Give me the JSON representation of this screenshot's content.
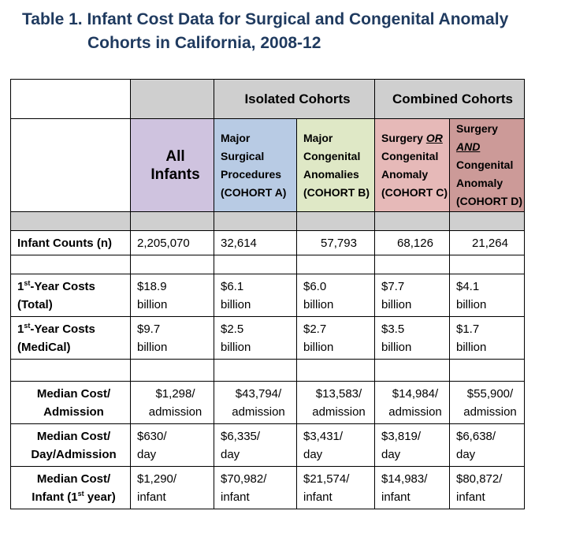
{
  "title": {
    "line1": "Table 1. Infant Cost Data for Surgical and Congenital Anomaly",
    "line2": "Cohorts in California, 2008-12"
  },
  "groups": {
    "isolated": "Isolated Cohorts",
    "combined": "Combined Cohorts"
  },
  "columns": {
    "all": [
      "All",
      "Infants"
    ],
    "a": [
      "Major",
      "Surgical",
      "Procedures",
      "(COHORT A)"
    ],
    "b": [
      "Major",
      "Congenital",
      "Anomalies",
      "(COHORT B)"
    ],
    "c": {
      "pre": "Surgery ",
      "em": "OR",
      "rest": [
        "Congenital",
        "Anomaly",
        "(COHORT C)"
      ]
    },
    "d": {
      "pre": "Surgery",
      "em": "AND",
      "rest": [
        "Congenital",
        "Anomaly",
        "(COHORT D)"
      ]
    }
  },
  "rows": {
    "counts": {
      "label": "Infant Counts (n)",
      "values": [
        "2,205,070",
        "32,614",
        "57,793",
        "68,126",
        "21,264"
      ]
    },
    "total": {
      "label_sup": "st",
      "label1": "-Year Costs",
      "label_pre": "1",
      "label2": "(Total)",
      "values": [
        [
          "$18.9",
          "billion"
        ],
        [
          "$6.1",
          "billion"
        ],
        [
          "$6.0",
          "billion"
        ],
        [
          "$7.7",
          "billion"
        ],
        [
          "$4.1",
          "billion"
        ]
      ]
    },
    "medical": {
      "label_pre": "1",
      "label_sup": "st",
      "label1": "-Year Costs",
      "label2": "(MediCal)",
      "values": [
        [
          "$9.7",
          "billion"
        ],
        [
          "$2.5",
          "billion"
        ],
        [
          "$2.7",
          "billion"
        ],
        [
          "$3.5",
          "billion"
        ],
        [
          "$1.7",
          "billion"
        ]
      ]
    },
    "admission": {
      "label1": "Median Cost/",
      "label2": "Admission",
      "values": [
        [
          "$1,298/",
          "admission"
        ],
        [
          "$43,794/",
          "admission"
        ],
        [
          "$13,583/",
          "admission"
        ],
        [
          "$14,984/",
          "admission"
        ],
        [
          "$55,900/",
          "admission"
        ]
      ]
    },
    "day": {
      "label1": "Median Cost/",
      "label2": "Day/Admission",
      "values": [
        [
          "$630/",
          "day"
        ],
        [
          "$6,335/",
          "day"
        ],
        [
          "$3,431/",
          "day"
        ],
        [
          "$3,819/",
          "day"
        ],
        [
          "$6,638/",
          "day"
        ]
      ]
    },
    "infant": {
      "label1": "Median Cost/",
      "label2_pre": "Infant (1",
      "label2_sup": "st",
      "label2_post": " year)",
      "values": [
        [
          "$1,290/",
          "infant"
        ],
        [
          "$70,982/",
          "infant"
        ],
        [
          "$21,574/",
          "infant"
        ],
        [
          "$14,983/",
          "infant"
        ],
        [
          "$80,872/",
          "infant"
        ]
      ]
    }
  },
  "colors": {
    "title": "#1f3a5f",
    "header_gray": "#cfcfcf",
    "all_infants": "#cfc3df",
    "cohort_a": "#b8cbe4",
    "cohort_b": "#dfe8c6",
    "cohort_c": "#e6b9b8",
    "cohort_d": "#cc9a98"
  }
}
